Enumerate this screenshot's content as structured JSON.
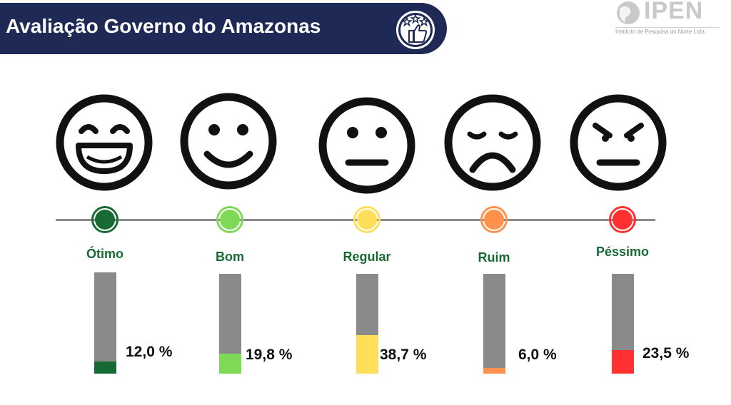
{
  "header": {
    "title": "Avaliação Governo do Amazonas"
  },
  "logo": {
    "name": "IPEN",
    "subtitle": "Instituto de Pesquisa do Norte Ltda."
  },
  "icons": [
    "rating-stars-thumb-icon",
    "grinning-face-icon",
    "smiling-face-icon",
    "neutral-face-icon",
    "sad-face-icon",
    "angry-face-icon"
  ],
  "chart_data": {
    "type": "bar",
    "title": "Avaliação Governo do Amazonas",
    "categories": [
      "Ótimo",
      "Bom",
      "Regular",
      "Ruim",
      "Péssimo"
    ],
    "values": [
      12.0,
      19.8,
      38.7,
      6.0,
      23.5
    ],
    "value_labels": [
      "12,0 %",
      "19,8 %",
      "38,7 %",
      "6,0 %",
      "23,5 %"
    ],
    "colors": [
      "#186a34",
      "#7ed957",
      "#ffde59",
      "#ff914d",
      "#ff3131"
    ],
    "label_color": "#186a34",
    "track_color": "#8a8a8a",
    "unit": "%",
    "ylim": [
      0,
      100
    ]
  }
}
